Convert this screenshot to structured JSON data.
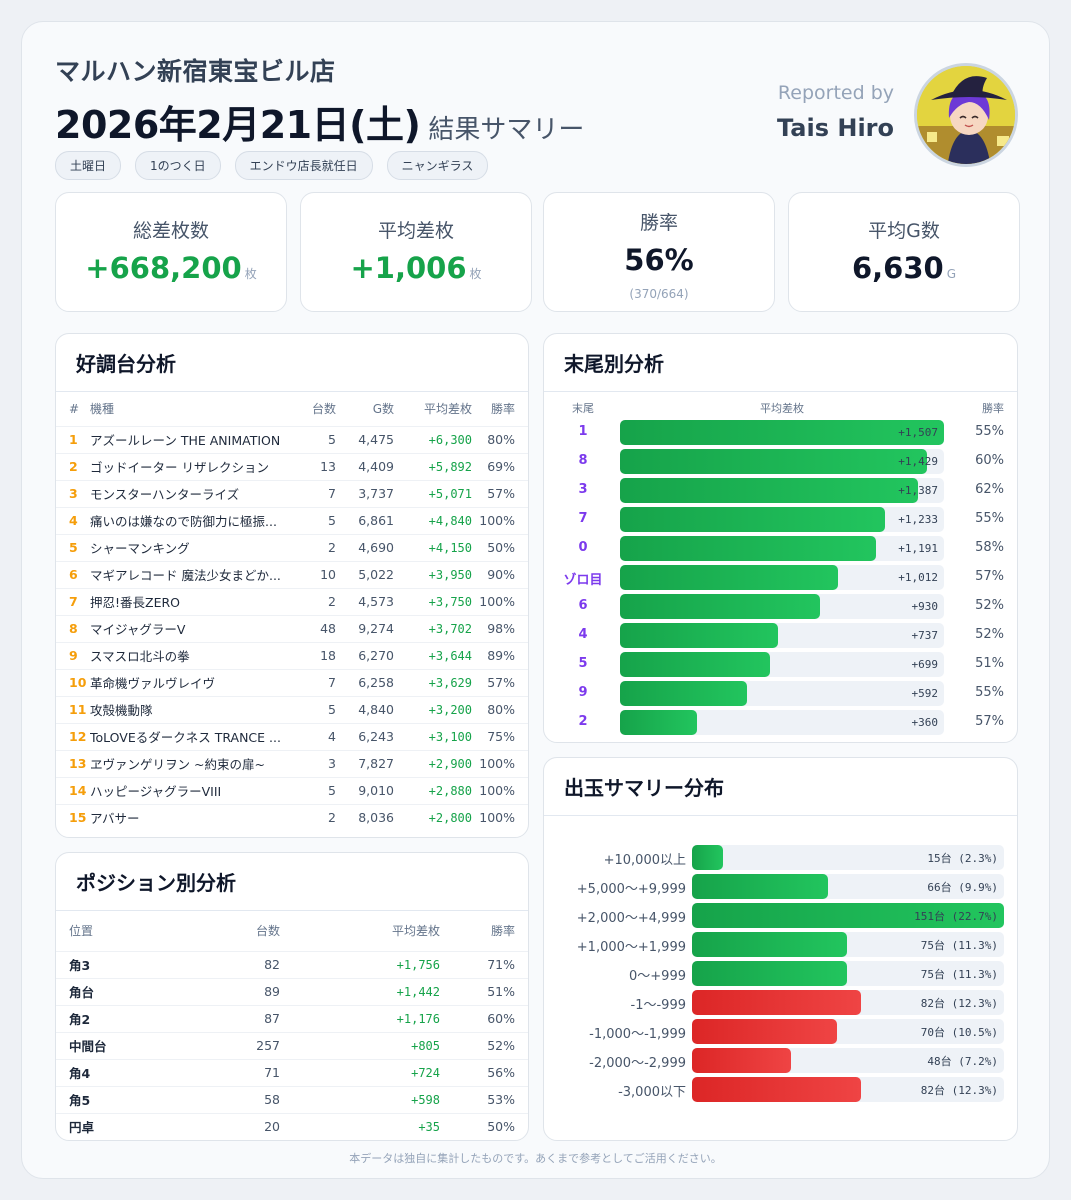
{
  "header": {
    "store": "マルハン新宿東宝ビル店",
    "date": "2026年2月21日(土)",
    "subtitle": "結果サマリー",
    "tags": [
      "土曜日",
      "1のつく日",
      "エンドウ店長就任日",
      "ニャンギラス"
    ],
    "reported_by": "Reported by",
    "reporter": "Tais Hiro"
  },
  "stats": [
    {
      "label": "総差枚数",
      "value": "+668,200",
      "unit": "枚",
      "color": "#16a34a"
    },
    {
      "label": "平均差枚",
      "value": "+1,006",
      "unit": "枚",
      "color": "#16a34a"
    },
    {
      "label": "勝率",
      "value": "56%",
      "sub": "(370/664)",
      "color": "#0f172a"
    },
    {
      "label": "平均G数",
      "value": "6,630",
      "unit": "G",
      "color": "#0f172a"
    }
  ],
  "hot": {
    "title": "好調台分析",
    "headers": [
      "#",
      "機種",
      "台数",
      "G数",
      "平均差枚",
      "勝率"
    ],
    "rows": [
      [
        "1",
        "アズールレーン THE ANIMATION",
        "5",
        "4,475",
        "+6,300",
        "80%"
      ],
      [
        "2",
        "ゴッドイーター リザレクション",
        "13",
        "4,409",
        "+5,892",
        "69%"
      ],
      [
        "3",
        "モンスターハンターライズ",
        "7",
        "3,737",
        "+5,071",
        "57%"
      ],
      [
        "4",
        "痛いのは嫌なので防御力に極振...",
        "5",
        "6,861",
        "+4,840",
        "100%"
      ],
      [
        "5",
        "シャーマンキング",
        "2",
        "4,690",
        "+4,150",
        "50%"
      ],
      [
        "6",
        "マギアレコード 魔法少女まどか...",
        "10",
        "5,022",
        "+3,950",
        "90%"
      ],
      [
        "7",
        "押忍!番長ZERO",
        "2",
        "4,573",
        "+3,750",
        "100%"
      ],
      [
        "8",
        "マイジャグラーV",
        "48",
        "9,274",
        "+3,702",
        "98%"
      ],
      [
        "9",
        "スマスロ北斗の拳",
        "18",
        "6,270",
        "+3,644",
        "89%"
      ],
      [
        "10",
        "革命機ヴァルヴレイヴ",
        "7",
        "6,258",
        "+3,629",
        "57%"
      ],
      [
        "11",
        "攻殻機動隊",
        "5",
        "4,840",
        "+3,200",
        "80%"
      ],
      [
        "12",
        "ToLOVEるダークネス TRANCE ...",
        "4",
        "6,243",
        "+3,100",
        "75%"
      ],
      [
        "13",
        "ヱヴァンゲリヲン ~約束の扉~",
        "3",
        "7,827",
        "+2,900",
        "100%"
      ],
      [
        "14",
        "ハッピージャグラーVIII",
        "5",
        "9,010",
        "+2,880",
        "100%"
      ],
      [
        "15",
        "アバサー",
        "2",
        "8,036",
        "+2,800",
        "100%"
      ]
    ]
  },
  "position": {
    "title": "ポジション別分析",
    "headers": [
      "位置",
      "台数",
      "平均差枚",
      "勝率"
    ],
    "rows": [
      [
        "角3",
        "82",
        "+1,756",
        "71%"
      ],
      [
        "角台",
        "89",
        "+1,442",
        "51%"
      ],
      [
        "角2",
        "87",
        "+1,176",
        "60%"
      ],
      [
        "中間台",
        "257",
        "+805",
        "52%"
      ],
      [
        "角4",
        "71",
        "+724",
        "56%"
      ],
      [
        "角5",
        "58",
        "+598",
        "53%"
      ],
      [
        "円卓",
        "20",
        "+35",
        "50%"
      ]
    ]
  },
  "suffix": {
    "title": "末尾別分析",
    "headers": [
      "末尾",
      "平均差枚",
      "勝率"
    ],
    "rows": [
      {
        "digit": "1",
        "value": 1507,
        "label": "+1,507",
        "win": "55%"
      },
      {
        "digit": "8",
        "value": 1429,
        "label": "+1,429",
        "win": "60%"
      },
      {
        "digit": "3",
        "value": 1387,
        "label": "+1,387",
        "win": "62%"
      },
      {
        "digit": "7",
        "value": 1233,
        "label": "+1,233",
        "win": "55%"
      },
      {
        "digit": "0",
        "value": 1191,
        "label": "+1,191",
        "win": "58%"
      },
      {
        "digit": "ゾロ目",
        "value": 1012,
        "label": "+1,012",
        "win": "57%"
      },
      {
        "digit": "6",
        "value": 930,
        "label": "+930",
        "win": "52%"
      },
      {
        "digit": "4",
        "value": 737,
        "label": "+737",
        "win": "52%"
      },
      {
        "digit": "5",
        "value": 699,
        "label": "+699",
        "win": "51%"
      },
      {
        "digit": "9",
        "value": 592,
        "label": "+592",
        "win": "55%"
      },
      {
        "digit": "2",
        "value": 360,
        "label": "+360",
        "win": "57%"
      }
    ]
  },
  "distribution": {
    "title": "出玉サマリー分布",
    "rows": [
      {
        "range": "+10,000以上",
        "count": 15,
        "label": "15台 (2.3%)",
        "tone": "green"
      },
      {
        "range": "+5,000〜+9,999",
        "count": 66,
        "label": "66台 (9.9%)",
        "tone": "green"
      },
      {
        "range": "+2,000〜+4,999",
        "count": 151,
        "label": "151台 (22.7%)",
        "tone": "green"
      },
      {
        "range": "+1,000〜+1,999",
        "count": 75,
        "label": "75台 (11.3%)",
        "tone": "green"
      },
      {
        "range": "0〜+999",
        "count": 75,
        "label": "75台 (11.3%)",
        "tone": "green"
      },
      {
        "range": "-1〜-999",
        "count": 82,
        "label": "82台 (12.3%)",
        "tone": "red"
      },
      {
        "range": "-1,000〜-1,999",
        "count": 70,
        "label": "70台 (10.5%)",
        "tone": "red"
      },
      {
        "range": "-2,000〜-2,999",
        "count": 48,
        "label": "48台 (7.2%)",
        "tone": "red"
      },
      {
        "range": "-3,000以下",
        "count": 82,
        "label": "82台 (12.3%)",
        "tone": "red"
      }
    ]
  },
  "footer": "本データは独自に集計したものです。あくまで参考としてご活用ください。"
}
